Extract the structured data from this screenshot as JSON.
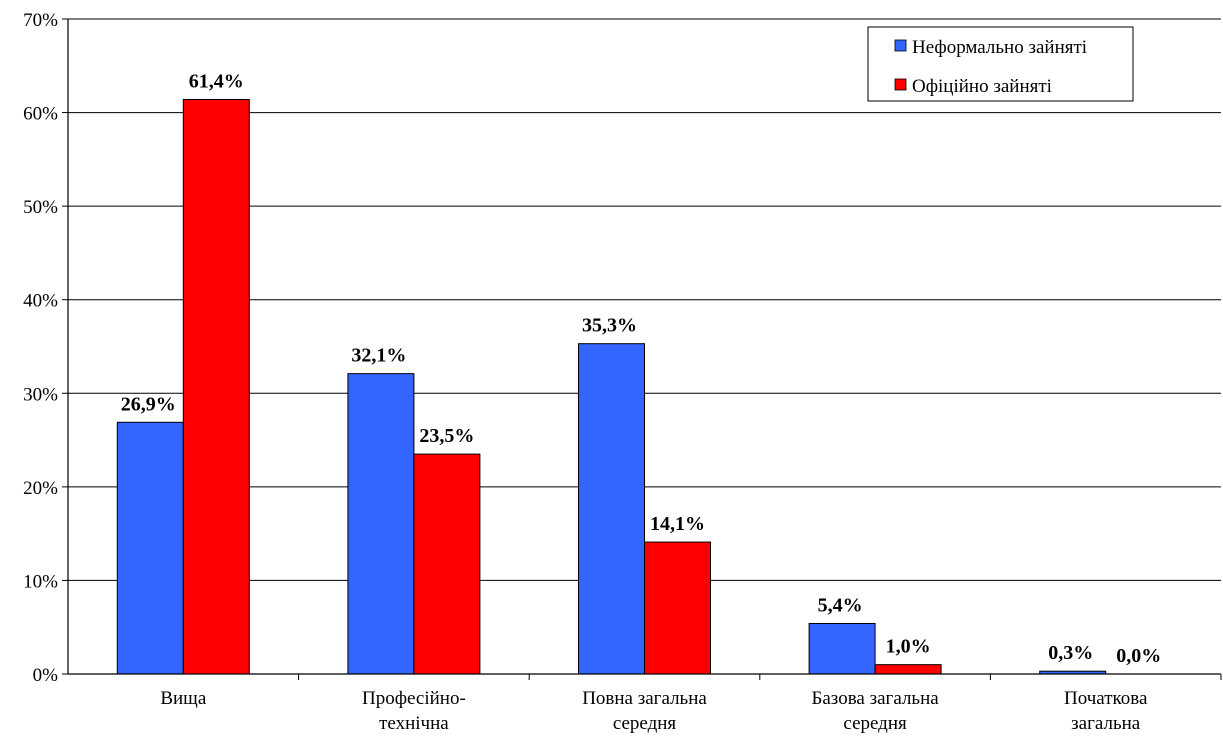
{
  "chart_data": {
    "type": "bar",
    "categories": [
      [
        "Вища"
      ],
      [
        "Професійно-",
        "технічна"
      ],
      [
        "Повна загальна",
        "середня"
      ],
      [
        "Базова загальна",
        "середня"
      ],
      [
        "Початкова",
        "загальна"
      ]
    ],
    "series": [
      {
        "name": "Неформально зайняті",
        "color": "#3366ff",
        "values": [
          26.9,
          32.1,
          35.3,
          5.4,
          0.3
        ],
        "labels": [
          "26,9%",
          "32,1%",
          "35,3%",
          "5,4%",
          "0,3%"
        ]
      },
      {
        "name": "Офіційно зайняті",
        "color": "#ff0000",
        "values": [
          61.4,
          23.5,
          14.1,
          1.0,
          0.0
        ],
        "labels": [
          "61,4%",
          "23,5%",
          "14,1%",
          "1,0%",
          "0,0%"
        ]
      }
    ],
    "ylim": [
      0,
      70
    ],
    "yticks": [
      0,
      10,
      20,
      30,
      40,
      50,
      60,
      70
    ],
    "ytick_labels": [
      "0%",
      "10%",
      "20%",
      "30%",
      "40%",
      "50%",
      "60%",
      "70%"
    ],
    "grid": true,
    "legend_position": "top-right"
  }
}
